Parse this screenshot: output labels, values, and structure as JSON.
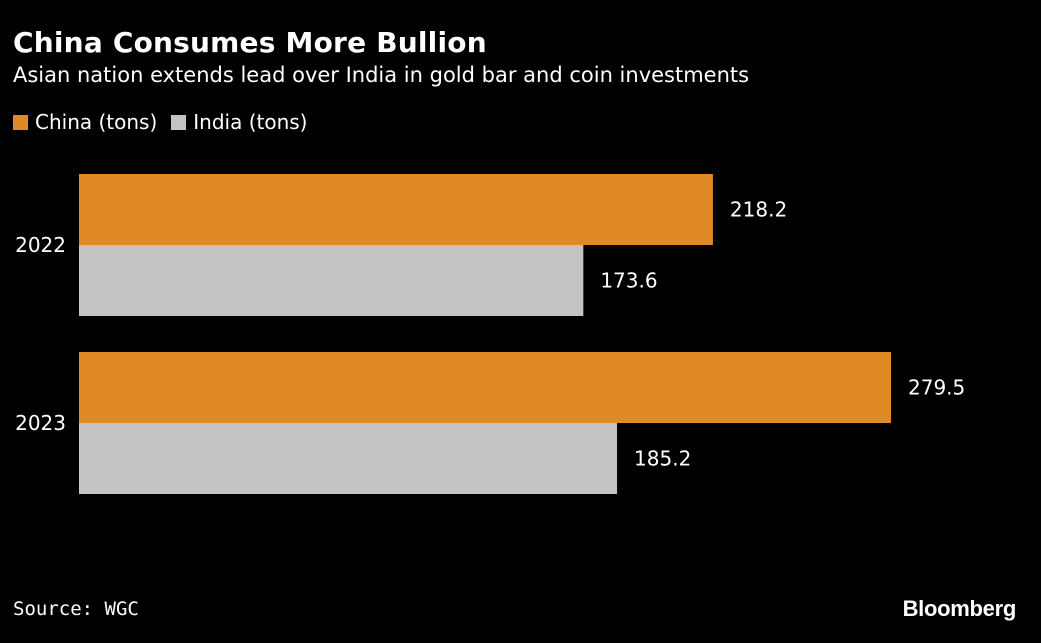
{
  "header": {
    "title": "China Consumes More Bullion",
    "subtitle": "Asian nation extends lead over India in gold bar and coin investments"
  },
  "legend": {
    "items": [
      {
        "label": "China (tons)",
        "color": "#e08a26"
      },
      {
        "label": "India (tons)",
        "color": "#c3c3c3"
      }
    ]
  },
  "chart_data": {
    "type": "bar",
    "orientation": "horizontal",
    "title": "China Consumes More Bullion",
    "subtitle": "Asian nation extends lead over India in gold bar and coin investments",
    "categories": [
      "2022",
      "2023"
    ],
    "series": [
      {
        "name": "China (tons)",
        "values": [
          218.2,
          279.5
        ],
        "color": "#e08a26"
      },
      {
        "name": "India (tons)",
        "values": [
          173.6,
          185.2
        ],
        "color": "#c3c3c3"
      }
    ],
    "value_labels": [
      [
        "218.2",
        "279.5"
      ],
      [
        "173.6",
        "185.2"
      ]
    ],
    "xlim": [
      0,
      279.5
    ],
    "grid": false,
    "legend_position": "top-left",
    "xlabel": "",
    "ylabel": ""
  },
  "footer": {
    "source": "Source: WGC",
    "logo": "Bloomberg"
  },
  "colors": {
    "background": "#000000",
    "text": "#ffffff",
    "china": "#e08a26",
    "india": "#c3c3c3"
  }
}
